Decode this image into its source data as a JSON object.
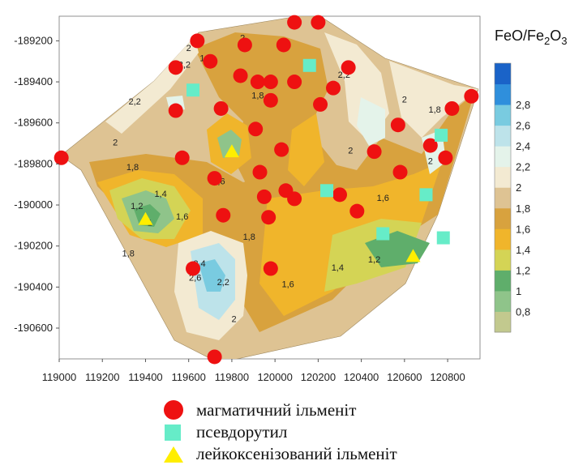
{
  "chart_data": {
    "type": "contour-map",
    "colorbar_title": "FeO/Fe2O3",
    "colorbar_title_parts": {
      "main": "FeO/Fe",
      "sub1": "2",
      "mid": "O",
      "sub2": "3"
    },
    "xlim": [
      119000,
      120950
    ],
    "ylim": [
      -190750,
      -189080
    ],
    "x_ticks": [
      119000,
      119200,
      119400,
      119600,
      119800,
      120000,
      120200,
      120400,
      120600,
      120800
    ],
    "y_ticks": [
      -189200,
      -189400,
      -189600,
      -189800,
      -190000,
      -190200,
      -190400,
      -190600
    ],
    "colorbar_levels": [
      0.8,
      1,
      1.2,
      1.4,
      1.6,
      1.8,
      2,
      2.2,
      2.4,
      2.6,
      2.8
    ],
    "colorbar_colors": [
      "#c2c98e",
      "#8fc48a",
      "#5fae6b",
      "#d4d455",
      "#f0b52b",
      "#d8a23e",
      "#dec393",
      "#f3ead2",
      "#e4f3ea",
      "#bde3ea",
      "#79cbe0",
      "#2f8fdc",
      "#1a63c8"
    ],
    "colors": {
      "magmatic": "#ee1111",
      "pseudorutile": "#66ecc8",
      "leucoxenized": "#ffee00"
    },
    "contour_labels": [
      {
        "text": "2",
        "x": 119600,
        "y": -189250
      },
      {
        "text": "2,2",
        "x": 119580,
        "y": -189330
      },
      {
        "text": "1,8",
        "x": 119680,
        "y": -189300
      },
      {
        "text": "2",
        "x": 119850,
        "y": -189200
      },
      {
        "text": "2,2",
        "x": 119350,
        "y": -189510
      },
      {
        "text": "1,8",
        "x": 119920,
        "y": -189480
      },
      {
        "text": "2",
        "x": 119260,
        "y": -189710
      },
      {
        "text": "1,8",
        "x": 119340,
        "y": -189830
      },
      {
        "text": "1,6",
        "x": 119740,
        "y": -189900
      },
      {
        "text": "1,4",
        "x": 119470,
        "y": -189960
      },
      {
        "text": "1,2",
        "x": 119360,
        "y": -190020
      },
      {
        "text": "1,6",
        "x": 119570,
        "y": -190070
      },
      {
        "text": "1",
        "x": 119420,
        "y": -190100
      },
      {
        "text": "1,8",
        "x": 119320,
        "y": -190250
      },
      {
        "text": "1,8",
        "x": 119880,
        "y": -190170
      },
      {
        "text": "2,4",
        "x": 119650,
        "y": -190300
      },
      {
        "text": "2,6",
        "x": 119630,
        "y": -190370
      },
      {
        "text": "2,2",
        "x": 119760,
        "y": -190390
      },
      {
        "text": "2",
        "x": 119810,
        "y": -190570
      },
      {
        "text": "1,6",
        "x": 120060,
        "y": -190400
      },
      {
        "text": "1,4",
        "x": 120290,
        "y": -190320
      },
      {
        "text": "1,2",
        "x": 120460,
        "y": -190280
      },
      {
        "text": "1,6",
        "x": 120500,
        "y": -189980
      },
      {
        "text": "2",
        "x": 120350,
        "y": -189750
      },
      {
        "text": "2,2",
        "x": 120320,
        "y": -189380
      },
      {
        "text": "2",
        "x": 120600,
        "y": -189500
      },
      {
        "text": "1,8",
        "x": 120740,
        "y": -189550
      },
      {
        "text": "2",
        "x": 120720,
        "y": -189800
      }
    ],
    "magmatic_ilmenite": [
      [
        119010,
        -189770
      ],
      [
        119640,
        -189200
      ],
      [
        119540,
        -189330
      ],
      [
        119540,
        -189540
      ],
      [
        119570,
        -189770
      ],
      [
        119700,
        -189300
      ],
      [
        119750,
        -189530
      ],
      [
        119860,
        -189220
      ],
      [
        119840,
        -189370
      ],
      [
        119920,
        -189400
      ],
      [
        119980,
        -189400
      ],
      [
        119980,
        -189490
      ],
      [
        120040,
        -189220
      ],
      [
        120090,
        -189110
      ],
      [
        120090,
        -189400
      ],
      [
        120200,
        -189110
      ],
      [
        120210,
        -189510
      ],
      [
        120270,
        -189430
      ],
      [
        120340,
        -189330
      ],
      [
        119910,
        -189630
      ],
      [
        119720,
        -189870
      ],
      [
        119930,
        -189840
      ],
      [
        120030,
        -189730
      ],
      [
        119950,
        -189960
      ],
      [
        120050,
        -189930
      ],
      [
        120090,
        -189970
      ],
      [
        120300,
        -189950
      ],
      [
        120380,
        -190030
      ],
      [
        120460,
        -189740
      ],
      [
        120570,
        -189610
      ],
      [
        120580,
        -189840
      ],
      [
        120720,
        -189710
      ],
      [
        120790,
        -189770
      ],
      [
        120820,
        -189530
      ],
      [
        120910,
        -189470
      ],
      [
        119760,
        -190050
      ],
      [
        119970,
        -190060
      ],
      [
        119620,
        -190310
      ],
      [
        119980,
        -190310
      ],
      [
        119720,
        -190740
      ]
    ],
    "pseudorutile": [
      [
        120160,
        -189320
      ],
      [
        119620,
        -189440
      ],
      [
        120240,
        -189930
      ],
      [
        120700,
        -189950
      ],
      [
        120770,
        -189660
      ],
      [
        120500,
        -190140
      ],
      [
        120780,
        -190160
      ]
    ],
    "leucoxenized_ilmenite": [
      [
        119800,
        -189740
      ],
      [
        119400,
        -190070
      ],
      [
        120640,
        -190250
      ]
    ],
    "legend": [
      {
        "key": "magmatic",
        "label": "магматичний ільменіт"
      },
      {
        "key": "pseudorutile",
        "label": "псевдорутил"
      },
      {
        "key": "leucoxenized",
        "label": "лейкоксенізований ільменіт"
      }
    ]
  }
}
